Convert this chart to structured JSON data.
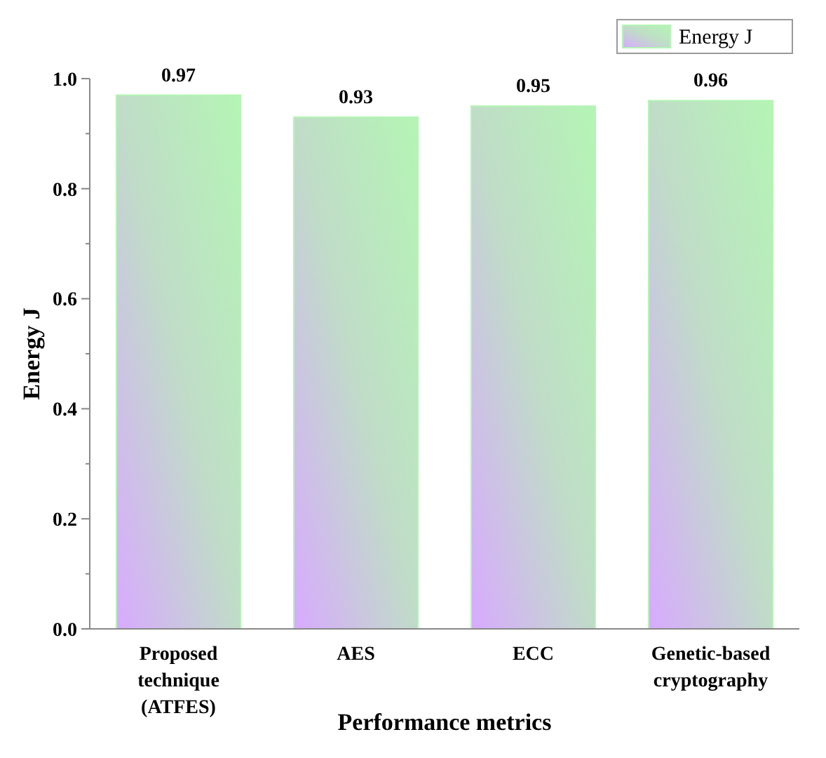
{
  "chart_data": {
    "type": "bar",
    "xlabel": "Performance metrics",
    "ylabel": "Energy J",
    "categories": [
      "Proposed technique (ATFES)",
      "AES",
      "ECC",
      "Genetic-based cryptography"
    ],
    "series": [
      {
        "name": "Energy J",
        "color": "#b4f5b4",
        "values": [
          0.97,
          0.93,
          0.95,
          0.96
        ]
      }
    ],
    "ylim": [
      0,
      1
    ],
    "yticks": [
      {
        "value": 0,
        "label": "0.0"
      },
      {
        "value": 0.1,
        "label": null
      },
      0.2,
      {
        "value": 0.3,
        "label": null
      },
      0.4,
      {
        "value": 0.5,
        "label": null
      },
      0.6,
      {
        "value": 0.7,
        "label": null
      },
      0.8,
      {
        "value": 0.9,
        "label": null
      },
      {
        "value": 1,
        "label": "1.0"
      }
    ],
    "data_labels": true,
    "legend": "top right",
    "grid": false
  }
}
